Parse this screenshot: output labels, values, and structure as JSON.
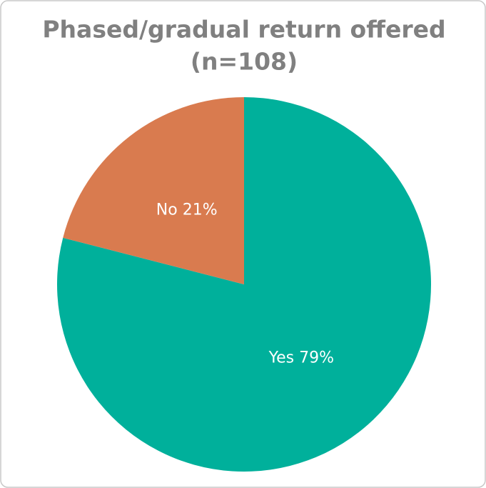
{
  "chart_data": {
    "type": "pie",
    "title": "Phased/gradual return offered",
    "subtitle": "(n=108)",
    "values": [
      79,
      21
    ],
    "value_labels": [
      "Yes 79%",
      "No 21%"
    ],
    "colors": [
      "#00b09b",
      "#d97b4f"
    ],
    "start_angle": 0,
    "direction": "clockwise"
  }
}
